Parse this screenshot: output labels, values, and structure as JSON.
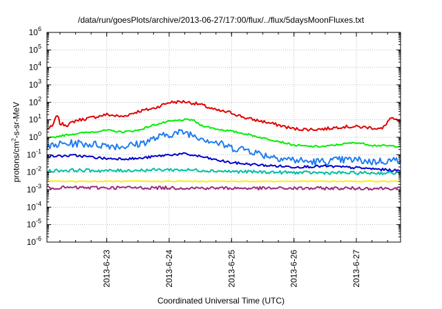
{
  "chart_data": {
    "type": "line",
    "title": "/data/run/goesPlots/archive/2013-06-27/17:00/flux/../flux/5daysMoonFluxes.txt",
    "xlabel": "Coordinated Universal Time (UTC)",
    "ylabel": "protons/cm2-s-sr-MeV",
    "ylabel_parts": {
      "pre": "protons/cm",
      "sup": "2",
      "post": "-s-sr-MeV"
    },
    "yscale": "log",
    "ylim_exp": [
      -6,
      6
    ],
    "y_ticks": [
      {
        "base": "10",
        "exp": "-6"
      },
      {
        "base": "10",
        "exp": "-5"
      },
      {
        "base": "10",
        "exp": "-4"
      },
      {
        "base": "10",
        "exp": "-3"
      },
      {
        "base": "10",
        "exp": "-2"
      },
      {
        "base": "10",
        "exp": "-1"
      },
      {
        "base": "10",
        "exp": "0"
      },
      {
        "base": "10",
        "exp": "1"
      },
      {
        "base": "10",
        "exp": "2"
      },
      {
        "base": "10",
        "exp": "3"
      },
      {
        "base": "10",
        "exp": "4"
      },
      {
        "base": "10",
        "exp": "5"
      },
      {
        "base": "10",
        "exp": "6"
      }
    ],
    "x_range_days": [
      "2013-06-22T01:00",
      "2013-06-27T17:00"
    ],
    "x_ticks": [
      {
        "label": "2013-6-23",
        "t": "2013-06-23T00:00"
      },
      {
        "label": "2013-6-24",
        "t": "2013-06-24T00:00"
      },
      {
        "label": "2013-6-25",
        "t": "2013-06-25T00:00"
      },
      {
        "label": "2013-6-26",
        "t": "2013-06-26T00:00"
      },
      {
        "label": "2013-6-27",
        "t": "2013-06-27T00:00"
      }
    ],
    "grid": true,
    "series": [
      {
        "color": "#e00000",
        "noise": 0.09,
        "points": [
          [
            "2013-06-22T01:00",
            3
          ],
          [
            "2013-06-22T03:00",
            4
          ],
          [
            "2013-06-22T05:00",
            20
          ],
          [
            "2013-06-22T06:00",
            6
          ],
          [
            "2013-06-22T09:00",
            5
          ],
          [
            "2013-06-22T12:00",
            9
          ],
          [
            "2013-06-22T18:00",
            13
          ],
          [
            "2013-06-23T00:00",
            20
          ],
          [
            "2013-06-23T06:00",
            15
          ],
          [
            "2013-06-23T12:00",
            30
          ],
          [
            "2013-06-23T18:00",
            45
          ],
          [
            "2013-06-24T00:00",
            100
          ],
          [
            "2013-06-24T06:00",
            110
          ],
          [
            "2013-06-24T12:00",
            75
          ],
          [
            "2013-06-24T18:00",
            35
          ],
          [
            "2013-06-25T00:00",
            25
          ],
          [
            "2013-06-25T06:00",
            12
          ],
          [
            "2013-06-25T12:00",
            8
          ],
          [
            "2013-06-25T18:00",
            5
          ],
          [
            "2013-06-26T00:00",
            3
          ],
          [
            "2013-06-26T06:00",
            2.8
          ],
          [
            "2013-06-26T12:00",
            3
          ],
          [
            "2013-06-26T18:00",
            4
          ],
          [
            "2013-06-27T00:00",
            4
          ],
          [
            "2013-06-27T06:00",
            3.5
          ],
          [
            "2013-06-27T10:00",
            3
          ],
          [
            "2013-06-27T13:00",
            12
          ],
          [
            "2013-06-27T17:00",
            8
          ]
        ]
      },
      {
        "color": "#00ee00",
        "noise": 0.05,
        "points": [
          [
            "2013-06-22T01:00",
            0.8
          ],
          [
            "2013-06-22T06:00",
            1.2
          ],
          [
            "2013-06-22T12:00",
            1.6
          ],
          [
            "2013-06-22T18:00",
            2.0
          ],
          [
            "2013-06-23T00:00",
            2.5
          ],
          [
            "2013-06-23T06:00",
            2.0
          ],
          [
            "2013-06-23T12:00",
            2.5
          ],
          [
            "2013-06-23T18:00",
            5
          ],
          [
            "2013-06-24T00:00",
            8
          ],
          [
            "2013-06-24T06:00",
            10
          ],
          [
            "2013-06-24T09:00",
            10
          ],
          [
            "2013-06-24T12:00",
            5
          ],
          [
            "2013-06-24T18:00",
            3
          ],
          [
            "2013-06-25T00:00",
            2.2
          ],
          [
            "2013-06-25T06:00",
            1.5
          ],
          [
            "2013-06-25T12:00",
            0.9
          ],
          [
            "2013-06-25T18:00",
            0.6
          ],
          [
            "2013-06-26T00:00",
            0.35
          ],
          [
            "2013-06-26T06:00",
            0.3
          ],
          [
            "2013-06-26T12:00",
            0.3
          ],
          [
            "2013-06-26T18:00",
            0.4
          ],
          [
            "2013-06-27T00:00",
            0.5
          ],
          [
            "2013-06-27T06:00",
            0.35
          ],
          [
            "2013-06-27T17:00",
            0.3
          ]
        ]
      },
      {
        "color": "#1e7cf0",
        "noise": 0.22,
        "points": [
          [
            "2013-06-22T01:00",
            0.25
          ],
          [
            "2013-06-22T06:00",
            0.4
          ],
          [
            "2013-06-22T12:00",
            0.45
          ],
          [
            "2013-06-22T18:00",
            0.4
          ],
          [
            "2013-06-23T00:00",
            0.35
          ],
          [
            "2013-06-23T06:00",
            0.3
          ],
          [
            "2013-06-23T12:00",
            0.4
          ],
          [
            "2013-06-23T18:00",
            0.8
          ],
          [
            "2013-06-24T00:00",
            1.5
          ],
          [
            "2013-06-24T06:00",
            2.0
          ],
          [
            "2013-06-24T12:00",
            1.0
          ],
          [
            "2013-06-24T18:00",
            0.5
          ],
          [
            "2013-06-25T00:00",
            0.25
          ],
          [
            "2013-06-25T06:00",
            0.2
          ],
          [
            "2013-06-25T12:00",
            0.1
          ],
          [
            "2013-06-25T18:00",
            0.07
          ],
          [
            "2013-06-26T00:00",
            0.05
          ],
          [
            "2013-06-26T06:00",
            0.04
          ],
          [
            "2013-06-26T12:00",
            0.04
          ],
          [
            "2013-06-26T18:00",
            0.05
          ],
          [
            "2013-06-27T00:00",
            0.05
          ],
          [
            "2013-06-27T06:00",
            0.04
          ],
          [
            "2013-06-27T17:00",
            0.05
          ]
        ]
      },
      {
        "color": "#0000cc",
        "noise": 0.07,
        "points": [
          [
            "2013-06-22T01:00",
            0.08
          ],
          [
            "2013-06-22T12:00",
            0.09
          ],
          [
            "2013-06-23T00:00",
            0.06
          ],
          [
            "2013-06-23T12:00",
            0.06
          ],
          [
            "2013-06-24T00:00",
            0.1
          ],
          [
            "2013-06-24T06:00",
            0.11
          ],
          [
            "2013-06-24T12:00",
            0.08
          ],
          [
            "2013-06-24T18:00",
            0.05
          ],
          [
            "2013-06-25T00:00",
            0.035
          ],
          [
            "2013-06-25T12:00",
            0.025
          ],
          [
            "2013-06-26T00:00",
            0.02
          ],
          [
            "2013-06-26T12:00",
            0.022
          ],
          [
            "2013-06-27T00:00",
            0.018
          ],
          [
            "2013-06-27T17:00",
            0.012
          ]
        ]
      },
      {
        "color": "#00c0a0",
        "noise": 0.09,
        "points": [
          [
            "2013-06-22T01:00",
            0.012
          ],
          [
            "2013-06-22T12:00",
            0.013
          ],
          [
            "2013-06-23T00:00",
            0.012
          ],
          [
            "2013-06-24T00:00",
            0.014
          ],
          [
            "2013-06-24T12:00",
            0.013
          ],
          [
            "2013-06-25T00:00",
            0.011
          ],
          [
            "2013-06-26T00:00",
            0.0095
          ],
          [
            "2013-06-27T00:00",
            0.009
          ],
          [
            "2013-06-27T17:00",
            0.009
          ]
        ]
      },
      {
        "color": "#ffee00",
        "noise": 0.03,
        "points": [
          [
            "2013-06-22T01:00",
            0.003
          ],
          [
            "2013-06-24T00:00",
            0.003
          ],
          [
            "2013-06-26T00:00",
            0.003
          ],
          [
            "2013-06-27T17:00",
            0.003
          ]
        ]
      },
      {
        "color": "#9a2a7a",
        "noise": 0.09,
        "points": [
          [
            "2013-06-22T01:00",
            0.0013
          ],
          [
            "2013-06-23T12:00",
            0.0013
          ],
          [
            "2013-06-25T12:00",
            0.0012
          ],
          [
            "2013-06-27T17:00",
            0.0012
          ]
        ]
      }
    ]
  }
}
